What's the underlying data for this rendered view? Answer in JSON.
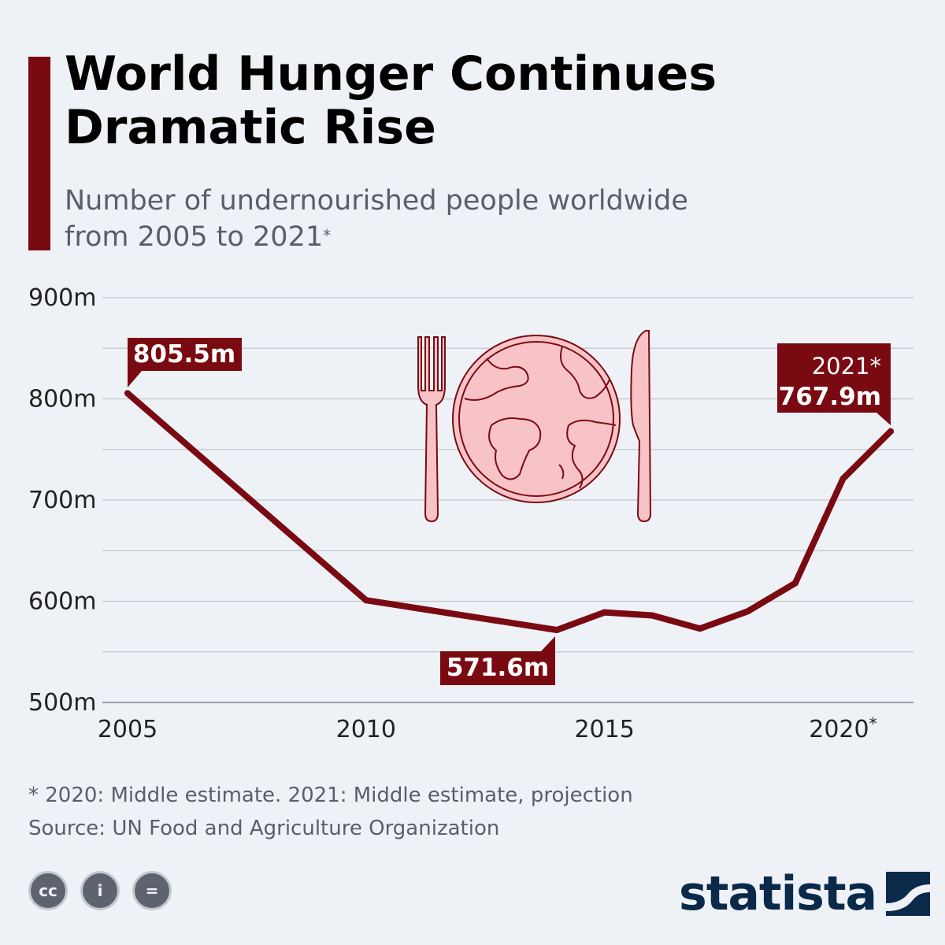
{
  "header": {
    "title_line1": "World Hunger Continues",
    "title_line2": "Dramatic Rise",
    "subtitle_line1": "Number of undernourished people worldwide",
    "subtitle_line2": "from 2005 to 2021",
    "subtitle_mark": "*"
  },
  "colors": {
    "accent": "#7a0a12",
    "grid": "#c2c6cc",
    "text": "#000000",
    "muted": "#5a5f66",
    "plate_fill": "#f8c3c7",
    "plate_stroke": "#7a0a12",
    "brand": "#0b2a4a"
  },
  "chart_data": {
    "type": "line",
    "x": [
      2005,
      2010,
      2014,
      2015,
      2016,
      2017,
      2018,
      2019,
      2020,
      2021
    ],
    "series": [
      {
        "values": [
          805.5,
          601.0,
          571.6,
          589.0,
          586.0,
          573.0,
          590.0,
          618.0,
          721.0,
          767.9
        ]
      }
    ],
    "xlim": [
      2005,
      2021
    ],
    "ylim": [
      500,
      900
    ],
    "y_ticks": [
      500,
      600,
      700,
      800,
      900
    ],
    "y_tick_labels": [
      "500m",
      "600m",
      "700m",
      "800m",
      "900m"
    ],
    "x_ticks": [
      2005,
      2010,
      2015,
      2020
    ],
    "x_tick_labels": [
      "2005",
      "2010",
      "2015",
      "2020*"
    ],
    "grid": true,
    "annotations": [
      {
        "x": 2005,
        "y": 805.5,
        "text": "805.5m"
      },
      {
        "x": 2014,
        "y": 571.6,
        "text": "571.6m"
      },
      {
        "x": 2021,
        "y": 767.9,
        "text": "767.9m",
        "label": "2021*"
      }
    ],
    "illustration": "plate-with-globe-fork-and-knife"
  },
  "footer": {
    "footnote": "* 2020: Middle estimate. 2021: Middle estimate, projection",
    "source": "Source: UN Food and Agriculture Organization",
    "license_icons": [
      "creative-commons-icon",
      "attribution-icon",
      "no-derivatives-icon"
    ],
    "license_glyphs": [
      "cc",
      "i",
      "="
    ],
    "brand": "statista"
  }
}
